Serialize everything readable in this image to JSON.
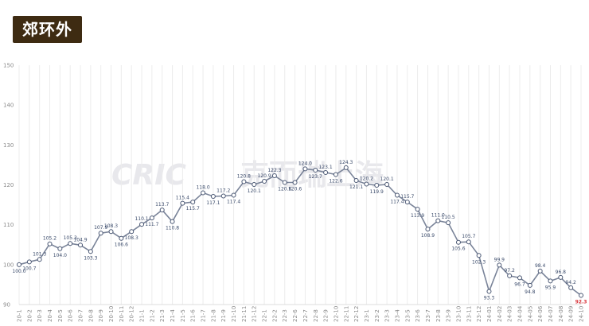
{
  "header": {
    "title": "郊环外"
  },
  "watermark": {
    "logo": "CRIC",
    "text": "克而瑞上海"
  },
  "chart_data": {
    "type": "line",
    "title": "郊环外",
    "xlabel": "",
    "ylabel": "",
    "ylim": [
      90,
      150
    ],
    "yticks": [
      90,
      100,
      110,
      120,
      130,
      140,
      150
    ],
    "grid": "vertical",
    "legend": "none",
    "colors": {
      "line": "#7a8499",
      "marker_fill": "#ffffff",
      "marker_stroke": "#4a5773",
      "last_label": "#d8343a"
    },
    "categories": [
      "20-1",
      "20-2",
      "20-3",
      "20-4",
      "20-5",
      "20-6",
      "20-7",
      "20-8",
      "20-9",
      "20-10",
      "20-11",
      "20-12",
      "21-1",
      "21-2",
      "21-3",
      "21-4",
      "21-5",
      "21-6",
      "21-7",
      "21-8",
      "21-9",
      "21-10",
      "21-11",
      "21-12",
      "22-1",
      "22-2",
      "22-3",
      "22-6",
      "22-7",
      "22-8",
      "22-9",
      "22-10",
      "22-11",
      "22-12",
      "23-1",
      "23-2",
      "23-3",
      "23-4",
      "23-5",
      "23-6",
      "23-7",
      "23-8",
      "23-9",
      "23-10",
      "23-11",
      "23-12",
      "24-01",
      "24-02",
      "24-03",
      "24-04",
      "24-05",
      "24-06",
      "24-07",
      "24-08",
      "24-09",
      "24-10"
    ],
    "values": [
      100.0,
      100.7,
      101.3,
      105.2,
      104.0,
      105.3,
      104.9,
      103.3,
      107.9,
      108.3,
      106.6,
      108.3,
      110.1,
      111.7,
      113.7,
      110.8,
      115.4,
      115.7,
      118.0,
      117.1,
      117.2,
      117.4,
      120.8,
      120.1,
      120.9,
      122.3,
      120.6,
      120.6,
      124.0,
      123.7,
      123.1,
      122.6,
      124.3,
      121.1,
      120.2,
      119.9,
      120.1,
      117.4,
      115.7,
      113.9,
      108.9,
      111.0,
      110.5,
      105.6,
      105.7,
      102.3,
      93.3,
      99.9,
      97.2,
      96.7,
      94.8,
      98.4,
      95.9,
      96.8,
      94.2,
      92.3
    ],
    "labels": [
      "100.0",
      "100.7",
      "101.3",
      "105.2",
      "104.0",
      "105.3",
      "104.9",
      "103.3",
      "107.9",
      "108.3",
      "106.6",
      "108.3",
      "110.1",
      "111.7",
      "113.7",
      "110.8",
      "115.4",
      "115.7",
      "118.0",
      "117.1",
      "117.2",
      "117.4",
      "120.8",
      "120.1",
      "120.9",
      "122.3",
      "120.6",
      "120.6",
      "124.0",
      "123.7",
      "123.1",
      "122.6",
      "124.3",
      "121.1",
      "120.2",
      "119.9",
      "120.1",
      "117.4",
      "115.7",
      "113.9",
      "108.9",
      "111.0",
      "110.5",
      "105.6",
      "105.7",
      "102.3",
      "93.3",
      "99.9",
      "97.2",
      "96.7",
      "94.8",
      "98.4",
      "95.9",
      "96.8",
      "94.2",
      "92.3"
    ]
  }
}
